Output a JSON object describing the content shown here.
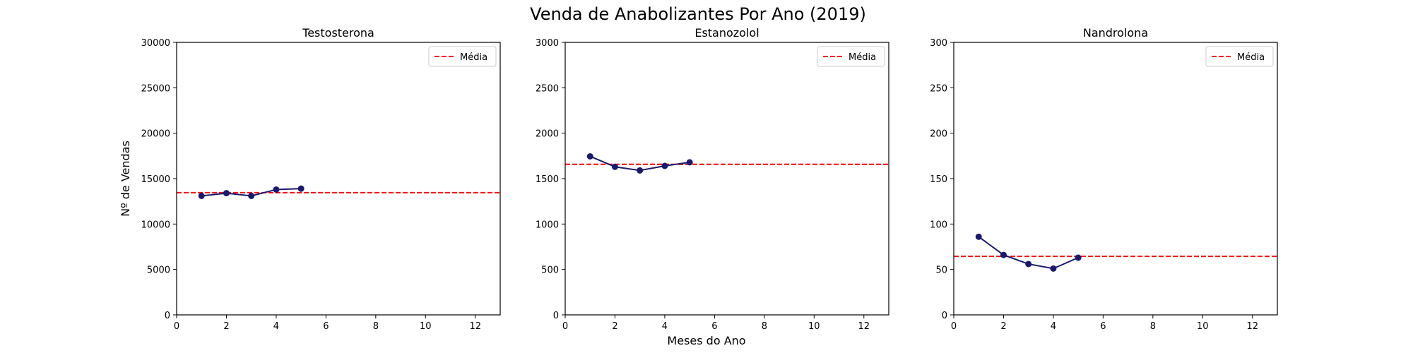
{
  "figure": {
    "title": "Venda de Anabolizantes Por Ano (2019)",
    "xlabel": "Meses do Ano",
    "ylabel": "Nº de Vendas"
  },
  "colors": {
    "line": "#191970",
    "mean": "#ff0000",
    "axis": "#000000"
  },
  "chart_data": [
    {
      "type": "line",
      "title": "Testosterona",
      "x": [
        1,
        2,
        3,
        4,
        5
      ],
      "values": [
        13100,
        13400,
        13100,
        13800,
        13900
      ],
      "mean": 13460,
      "mean_label": "Média",
      "xlim": [
        0,
        13
      ],
      "ylim": [
        0,
        30000
      ],
      "xticks": [
        0,
        2,
        4,
        6,
        8,
        10,
        12
      ],
      "yticks": [
        0,
        5000,
        10000,
        15000,
        20000,
        25000,
        30000
      ],
      "ylabel": "Nº de Vendas",
      "xlabel": "",
      "legend": "top-right",
      "grid": false
    },
    {
      "type": "line",
      "title": "Estanozolol",
      "x": [
        1,
        2,
        3,
        4,
        5
      ],
      "values": [
        1745,
        1630,
        1590,
        1640,
        1680
      ],
      "mean": 1657,
      "mean_label": "Média",
      "xlim": [
        0,
        13
      ],
      "ylim": [
        0,
        3000
      ],
      "xticks": [
        0,
        2,
        4,
        6,
        8,
        10,
        12
      ],
      "yticks": [
        0,
        500,
        1000,
        1500,
        2000,
        2500,
        3000
      ],
      "ylabel": "",
      "xlabel": "Meses do Ano",
      "legend": "top-right",
      "grid": false
    },
    {
      "type": "line",
      "title": "Nandrolona",
      "x": [
        1,
        2,
        3,
        4,
        5
      ],
      "values": [
        86,
        66,
        56,
        51,
        63
      ],
      "mean": 64.4,
      "mean_label": "Média",
      "xlim": [
        0,
        13
      ],
      "ylim": [
        0,
        300
      ],
      "xticks": [
        0,
        2,
        4,
        6,
        8,
        10,
        12
      ],
      "yticks": [
        0,
        50,
        100,
        150,
        200,
        250,
        300
      ],
      "ylabel": "",
      "xlabel": "",
      "legend": "top-right",
      "grid": false
    }
  ]
}
